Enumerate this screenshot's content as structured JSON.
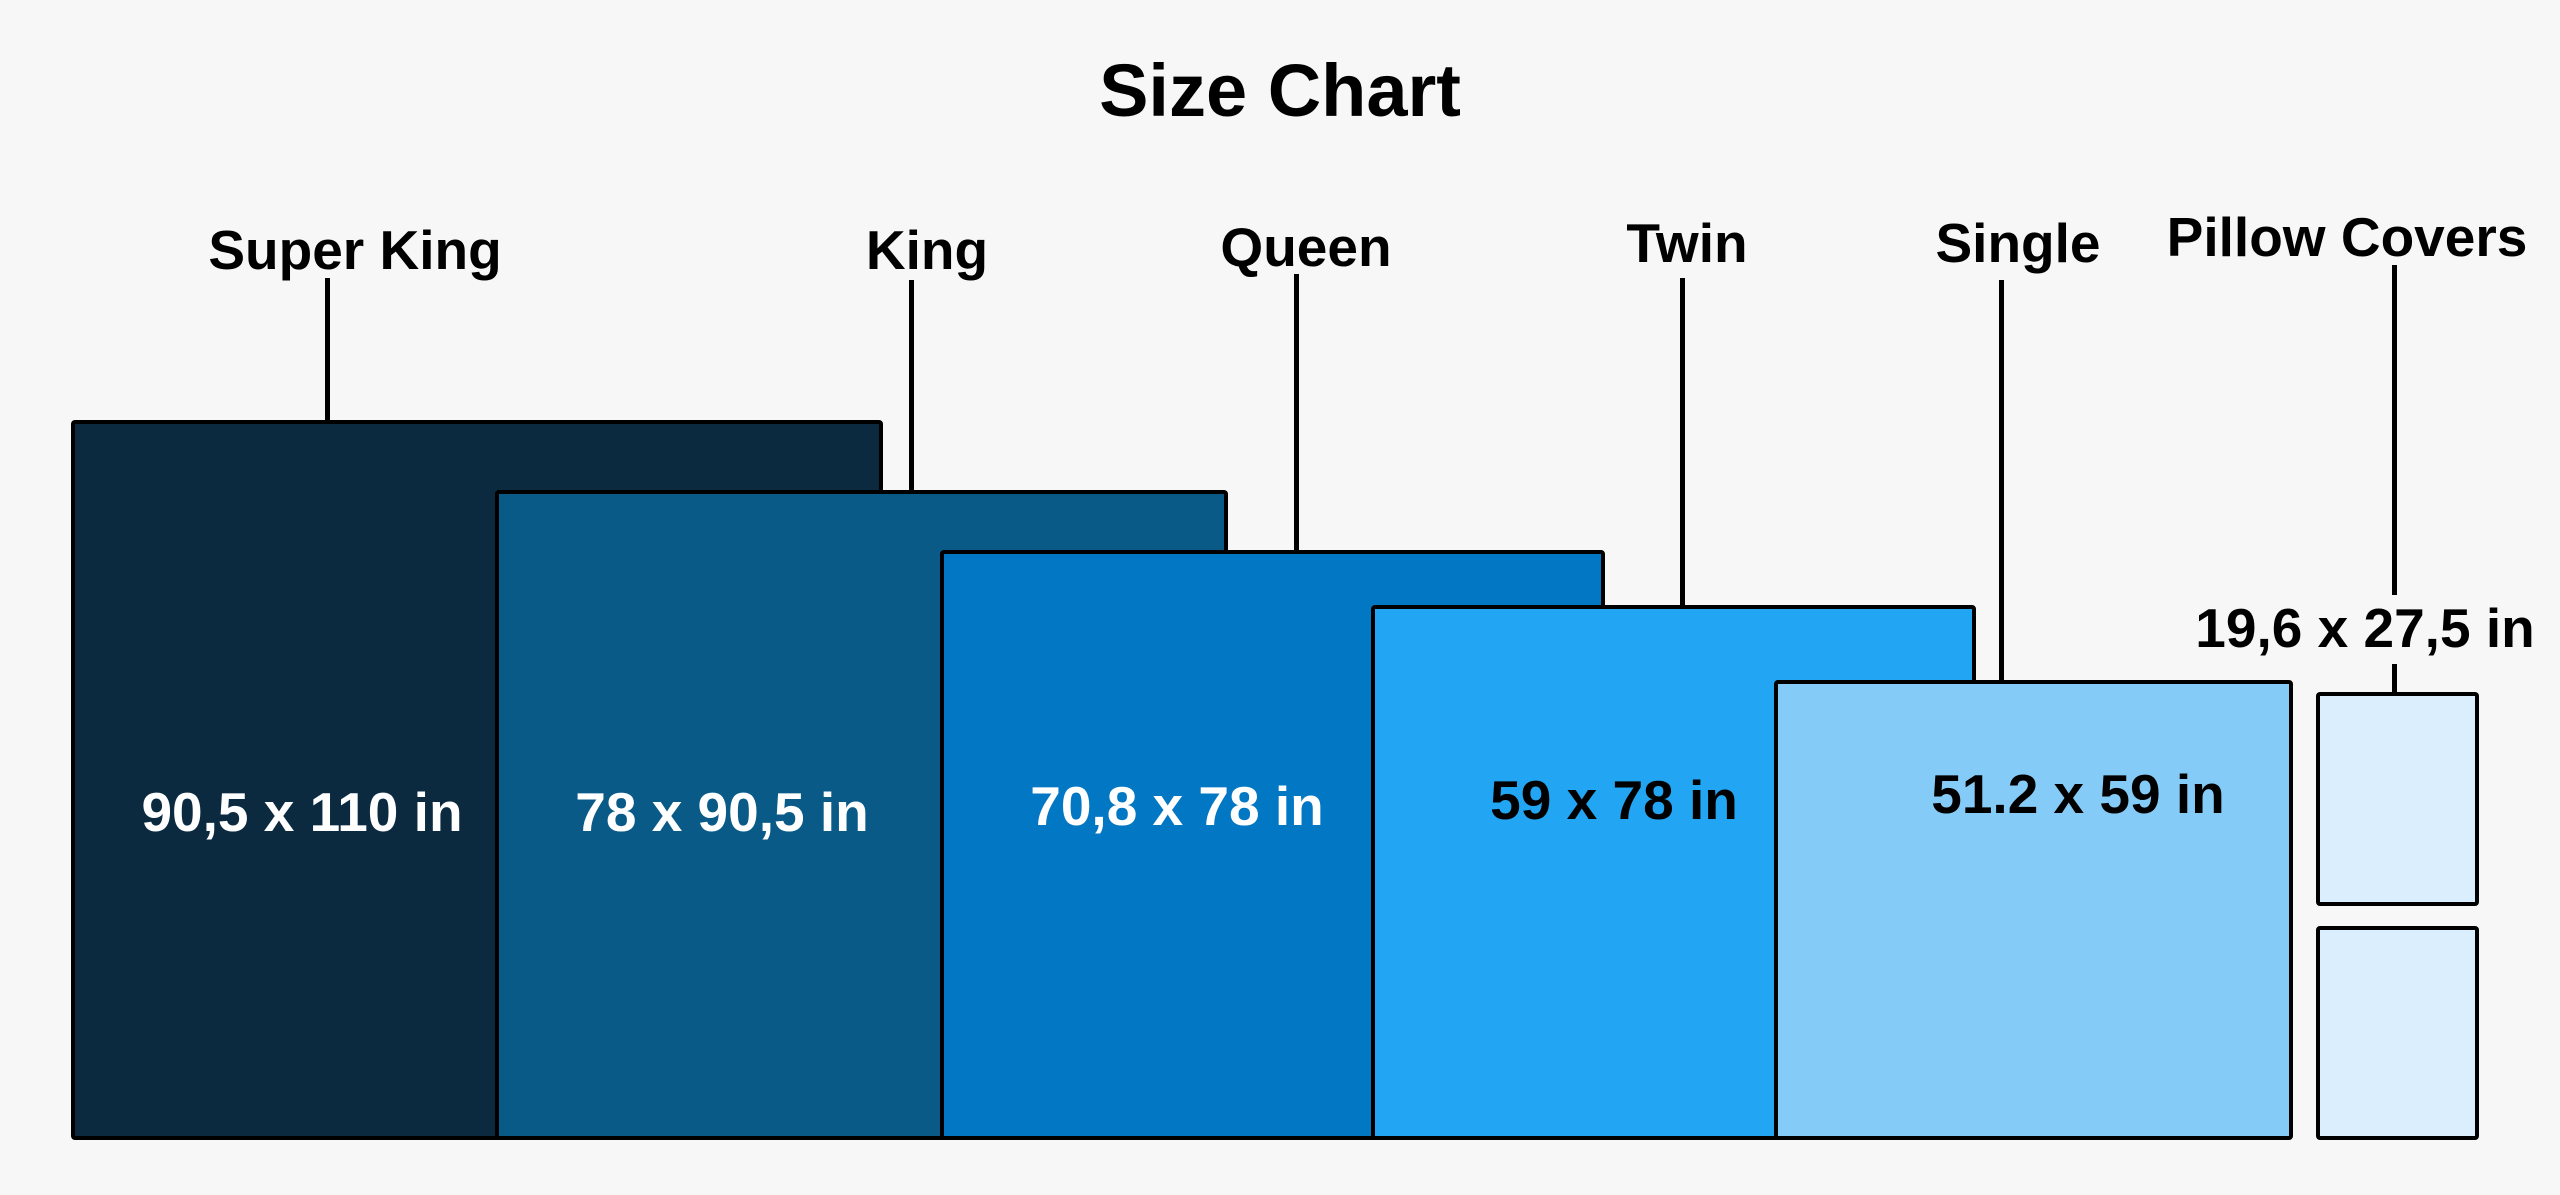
{
  "title": "Size Chart",
  "sizes": [
    {
      "name": "Super King",
      "dimensions": "90,5 x 110 in",
      "color": "#0b2a40",
      "text_color": "#ffffff"
    },
    {
      "name": "King",
      "dimensions": "78 x 90,5 in",
      "color": "#0a5a88",
      "text_color": "#ffffff"
    },
    {
      "name": "Queen",
      "dimensions": "70,8 x 78 in",
      "color": "#0277c3",
      "text_color": "#ffffff"
    },
    {
      "name": "Twin",
      "dimensions": "59 x 78 in",
      "color": "#22a5f2",
      "text_color": "#000000"
    },
    {
      "name": "Single",
      "dimensions": "51.2 x 59 in",
      "color": "#84ccf7",
      "text_color": "#000000"
    },
    {
      "name": "Pillow Covers",
      "dimensions": "19,6 x 27,5 in",
      "color": "#dbeefd",
      "text_color": "#000000"
    }
  ]
}
